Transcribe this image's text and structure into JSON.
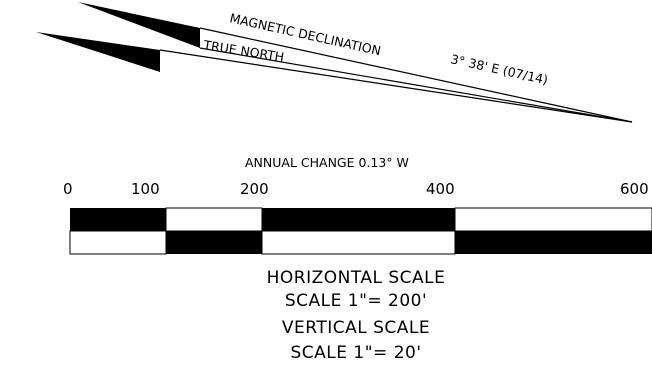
{
  "north_arrows": {
    "magnetic": {
      "label": "MAGNETIC DECLINATION",
      "value": "3° 38' E (07/14)"
    },
    "true_north": {
      "label": "TRUE NORTH"
    }
  },
  "annual_change": "ANNUAL CHANGE 0.13° W",
  "bar_scale": {
    "ticks": [
      "0",
      "100",
      "200",
      "400",
      "600"
    ],
    "colors": {
      "fill": "#000000",
      "empty": "#ffffff"
    }
  },
  "scale_notes": {
    "horizontal_title": "HORIZONTAL SCALE",
    "horizontal_value": "SCALE 1\"= 200'",
    "vertical_title": "VERTICAL SCALE",
    "vertical_value": "SCALE 1\"= 20'"
  }
}
